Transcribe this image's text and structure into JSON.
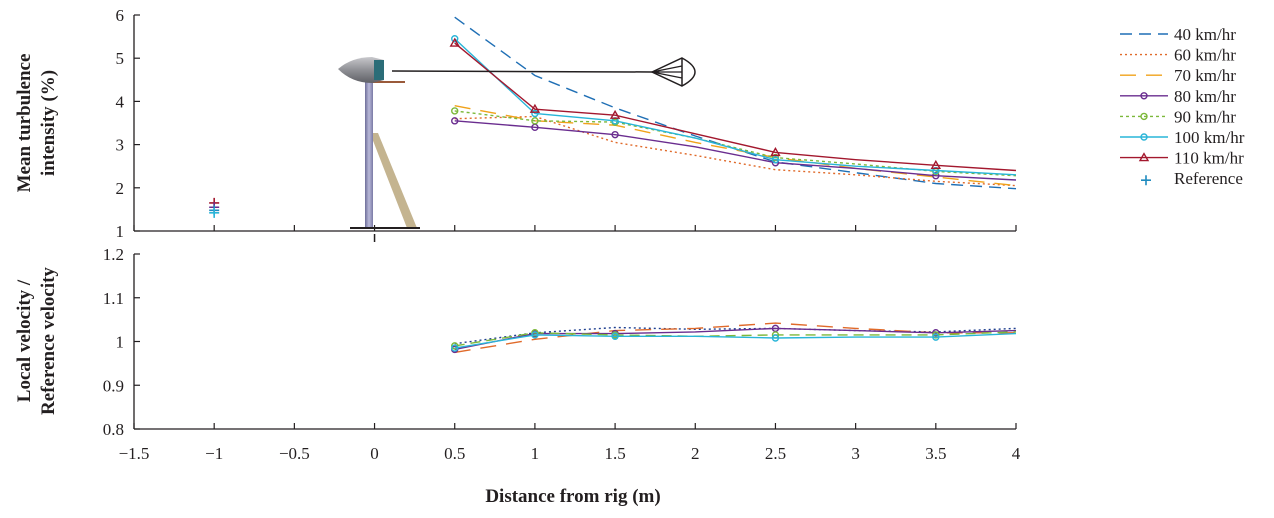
{
  "chart_data": {
    "type": "line",
    "xlabel": "Distance from rig (m)",
    "x_ticks": [
      "−1.5",
      "−1",
      "−0.5",
      "0",
      "0.5",
      "1",
      "1.5",
      "2",
      "2.5",
      "3",
      "3.5",
      "4"
    ],
    "xlim": [
      -1.5,
      4
    ],
    "panels": [
      {
        "id": "top",
        "ylabel_lines": [
          "Mean turbulence",
          "intensity (%)"
        ],
        "ylim": [
          1,
          6
        ],
        "y_ticks": [
          "1",
          "2",
          "3",
          "4",
          "5",
          "6"
        ],
        "series": [
          {
            "name": "40 km/hr",
            "color": "#1f6fb5",
            "dash": "12,7",
            "marker": "none",
            "x": [
              0.5,
              1,
              1.5,
              2,
              2.5,
              3,
              3.5,
              4
            ],
            "y": [
              5.95,
              4.6,
              3.85,
              3.2,
              2.6,
              2.35,
              2.1,
              1.98
            ]
          },
          {
            "name": "60 km/hr",
            "color": "#e06a2a",
            "dash": "2,3",
            "marker": "none",
            "x": [
              0.5,
              1,
              1.5,
              2,
              2.5,
              3,
              3.5,
              4
            ],
            "y": [
              3.6,
              3.65,
              3.05,
              2.75,
              2.42,
              2.3,
              2.15,
              2.05
            ]
          },
          {
            "name": "70 km/hr",
            "color": "#f0a21a",
            "dash": "16,10",
            "marker": "none",
            "x": [
              0.5,
              1,
              1.5,
              2,
              2.5,
              3,
              3.5,
              4
            ],
            "y": [
              3.9,
              3.55,
              3.45,
              3.05,
              2.7,
              2.45,
              2.25,
              2.05
            ]
          },
          {
            "name": "80 km/hr",
            "color": "#6a2d8f",
            "dash": "",
            "marker": "circle",
            "x": [
              0.5,
              1,
              1.5,
              2,
              2.5,
              3,
              3.5,
              4
            ],
            "y": [
              3.55,
              3.4,
              3.23,
              2.95,
              2.58,
              2.45,
              2.28,
              2.18
            ]
          },
          {
            "name": "90 km/hr",
            "color": "#7cb83a",
            "dash": "3,3",
            "marker": "circle",
            "x": [
              0.5,
              1,
              1.5,
              2,
              2.5,
              3,
              3.5,
              4
            ],
            "y": [
              3.78,
              3.55,
              3.52,
              3.15,
              2.7,
              2.55,
              2.38,
              2.28
            ]
          },
          {
            "name": "100 km/hr",
            "color": "#29b5d8",
            "dash": "",
            "marker": "circle",
            "x": [
              0.5,
              1,
              1.5,
              2,
              2.5,
              3,
              3.5,
              4
            ],
            "y": [
              5.45,
              3.72,
              3.55,
              3.15,
              2.65,
              2.5,
              2.4,
              2.3
            ]
          },
          {
            "name": "110 km/hr",
            "color": "#a3182e",
            "dash": "",
            "marker": "triangle",
            "x": [
              0.5,
              1,
              1.5,
              2,
              2.5,
              3,
              3.5,
              4
            ],
            "y": [
              5.35,
              3.82,
              3.68,
              3.25,
              2.82,
              2.65,
              2.52,
              2.4
            ]
          }
        ],
        "reference": {
          "name": "Reference",
          "color": "#1f8bbf",
          "points": [
            {
              "x": -1,
              "y": 1.65,
              "color": "#a3182e"
            },
            {
              "x": -1,
              "y": 1.55,
              "color": "#6a2d8f"
            },
            {
              "x": -1,
              "y": 1.48,
              "color": "#1f8bbf"
            },
            {
              "x": -1,
              "y": 1.42,
              "color": "#29b5d8"
            }
          ]
        }
      },
      {
        "id": "bottom",
        "ylabel_lines": [
          "Local velocity /",
          "Reference velocity"
        ],
        "ylim": [
          0.8,
          1.2
        ],
        "y_ticks": [
          "0.8",
          "0.9",
          "1",
          "1.1",
          "1.2"
        ],
        "series": [
          {
            "name": "60 km/hr",
            "color": "#1f3f8f",
            "dash": "2,3",
            "marker": "none",
            "x": [
              0.5,
              1,
              1.5,
              2,
              2.5,
              3,
              3.5,
              4
            ],
            "y": [
              0.995,
              1.02,
              1.032,
              1.028,
              1.03,
              1.025,
              1.022,
              1.03
            ]
          },
          {
            "name": "70 km/hr",
            "color": "#e06a2a",
            "dash": "16,10",
            "marker": "none",
            "x": [
              0.5,
              1,
              1.5,
              2,
              2.5,
              3,
              3.5,
              4
            ],
            "y": [
              0.975,
              1.005,
              1.025,
              1.03,
              1.042,
              1.03,
              1.02,
              1.02
            ]
          },
          {
            "name": "80 km/hr",
            "color": "#6a2d8f",
            "dash": "",
            "marker": "circle",
            "x": [
              0.5,
              1,
              1.5,
              2,
              2.5,
              3,
              3.5,
              4
            ],
            "y": [
              0.982,
              1.018,
              1.018,
              1.022,
              1.03,
              1.025,
              1.02,
              1.025
            ]
          },
          {
            "name": "90 km/hr",
            "color": "#7cb83a",
            "dash": "10,6",
            "marker": "circle",
            "x": [
              0.5,
              1,
              1.5,
              2,
              2.5,
              3,
              3.5,
              4
            ],
            "y": [
              0.99,
              1.02,
              1.015,
              1.012,
              1.015,
              1.015,
              1.015,
              1.022
            ]
          },
          {
            "name": "100 km/hr",
            "color": "#29b5d8",
            "dash": "",
            "marker": "circle",
            "x": [
              0.5,
              1,
              1.5,
              2,
              2.5,
              3,
              3.5,
              4
            ],
            "y": [
              0.985,
              1.015,
              1.012,
              1.012,
              1.008,
              1.01,
              1.01,
              1.018
            ]
          }
        ]
      }
    ],
    "legend": {
      "placement": "right",
      "entries": [
        {
          "label": "40 km/hr",
          "color": "#1f6fb5",
          "dash": "12,7",
          "marker": "none"
        },
        {
          "label": "60 km/hr",
          "color": "#e06a2a",
          "dash": "2,3",
          "marker": "none"
        },
        {
          "label": "70 km/hr",
          "color": "#f0a21a",
          "dash": "16,10",
          "marker": "none"
        },
        {
          "label": "80 km/hr",
          "color": "#6a2d8f",
          "dash": "",
          "marker": "circle"
        },
        {
          "label": "90 km/hr",
          "color": "#7cb83a",
          "dash": "3,3",
          "marker": "circle"
        },
        {
          "label": "100 km/hr",
          "color": "#29b5d8",
          "dash": "",
          "marker": "circle"
        },
        {
          "label": "110 km/hr",
          "color": "#a3182e",
          "dash": "",
          "marker": "triangle"
        },
        {
          "label": "Reference",
          "color": "#1f8bbf",
          "dash": "",
          "marker": "plus"
        }
      ]
    }
  }
}
